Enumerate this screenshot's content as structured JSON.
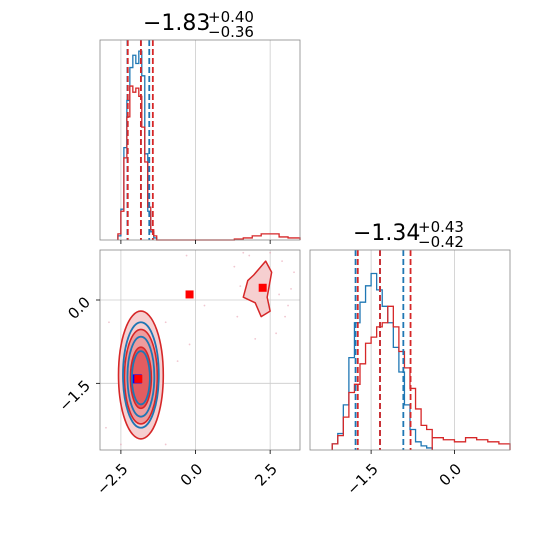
{
  "colors": {
    "blue": "#1f77b4",
    "red": "#d62728",
    "red_fill": "#f4c6c7",
    "grid": "#cccccc",
    "axis": "#888888",
    "blue_marker": "#0000ff",
    "red_marker": "#ff0000"
  },
  "chart_data": [
    {
      "type": "histogram",
      "panel": "x-marginal",
      "title": {
        "value": "−1.83",
        "plus": "+0.40",
        "minus": "−0.36"
      },
      "xlim": [
        -3.2,
        3.5
      ],
      "grid_x": [
        -2.5,
        0.0,
        2.5
      ],
      "bins_x": [
        -2.6,
        -2.5,
        -2.4,
        -2.3,
        -2.2,
        -2.1,
        -2.0,
        -1.9,
        -1.8,
        -1.7,
        -1.6,
        -1.5,
        -1.4,
        -1.3
      ],
      "series": [
        {
          "color": "blue",
          "heights": [
            0.02,
            0.15,
            0.45,
            0.68,
            0.84,
            0.9,
            0.86,
            0.92,
            0.8,
            0.42,
            0.14,
            0.04,
            0.01
          ],
          "quantile_lines": [
            -2.28,
            -1.83,
            -1.55
          ]
        },
        {
          "color": "red",
          "heights": [
            0.03,
            0.14,
            0.4,
            0.6,
            0.75,
            0.72,
            0.74,
            0.7,
            0.55,
            0.38,
            0.16,
            0.05,
            0.02
          ],
          "extra_bins": [
            1.3,
            1.6,
            1.9,
            2.2,
            2.5,
            2.8,
            3.1,
            3.5
          ],
          "extra_heights": [
            0.005,
            0.01,
            0.02,
            0.03,
            0.03,
            0.015,
            0.01
          ],
          "quantile_lines": [
            -2.27,
            -1.83,
            -1.43
          ]
        }
      ]
    },
    {
      "type": "histogram",
      "panel": "y-marginal",
      "title": {
        "value": "−1.34",
        "plus": "+0.43",
        "minus": "−0.42"
      },
      "xlim": [
        -2.6,
        1.0
      ],
      "xticks": [
        -1.5,
        0.0
      ],
      "xtick_labels": [
        "−1.5",
        "0.0"
      ],
      "grid_x": [
        -1.5,
        0.0
      ],
      "bins_x": [
        -2.2,
        -2.1,
        -2.0,
        -1.9,
        -1.8,
        -1.7,
        -1.6,
        -1.5,
        -1.4,
        -1.3,
        -1.2,
        -1.1,
        -1.0,
        -0.9,
        -0.8,
        -0.7,
        -0.6,
        -0.5,
        -0.4
      ],
      "series": [
        {
          "color": "blue",
          "heights": [
            0.03,
            0.08,
            0.22,
            0.45,
            0.62,
            0.72,
            0.8,
            0.86,
            0.78,
            0.7,
            0.62,
            0.5,
            0.38,
            0.22,
            0.1,
            0.04,
            0.02,
            0.01
          ],
          "quantile_lines": [
            -1.78,
            -1.34,
            -0.92
          ]
        },
        {
          "color": "red",
          "heights": [
            0.03,
            0.07,
            0.16,
            0.28,
            0.32,
            0.42,
            0.52,
            0.55,
            0.6,
            0.62,
            0.7,
            0.6,
            0.48,
            0.4,
            0.3,
            0.2,
            0.12,
            0.1
          ],
          "extra_bins": [
            -0.4,
            -0.2,
            0.0,
            0.2,
            0.4,
            0.6,
            0.8,
            1.0
          ],
          "extra_heights": [
            0.06,
            0.05,
            0.04,
            0.06,
            0.05,
            0.04,
            0.03
          ],
          "quantile_lines": [
            -1.74,
            -1.34,
            -0.79
          ]
        }
      ]
    },
    {
      "type": "contour",
      "panel": "joint",
      "xlim": [
        -3.2,
        3.5
      ],
      "ylim": [
        -2.7,
        0.9
      ],
      "xticks": [
        -2.5,
        0.0,
        2.5
      ],
      "xtick_labels": [
        "−2.5",
        "0.0",
        "2.5"
      ],
      "yticks": [
        0.0,
        -1.5
      ],
      "ytick_labels": [
        "0.0",
        "−1.5"
      ],
      "grid_x": [
        -2.5,
        0.0,
        2.5
      ],
      "grid_y": [
        0.0,
        -1.5
      ],
      "blue_contours": [
        {
          "cx": -1.83,
          "cy": -1.35,
          "rx": 0.6,
          "ry": 0.95
        },
        {
          "cx": -1.83,
          "cy": -1.38,
          "rx": 0.45,
          "ry": 0.72
        },
        {
          "cx": -1.83,
          "cy": -1.4,
          "rx": 0.3,
          "ry": 0.48
        }
      ],
      "red_contours": [
        {
          "cx": -1.83,
          "cy": -1.35,
          "rx": 0.75,
          "ry": 1.15
        },
        {
          "cx": -1.83,
          "cy": -1.38,
          "rx": 0.55,
          "ry": 0.85
        },
        {
          "cx": -1.83,
          "cy": -1.4,
          "rx": 0.35,
          "ry": 0.55
        }
      ],
      "red_secondary_mode": {
        "points": [
          [
            1.95,
            0.45
          ],
          [
            2.35,
            0.7
          ],
          [
            2.55,
            0.5
          ],
          [
            2.4,
            0.05
          ],
          [
            2.5,
            -0.2
          ],
          [
            2.2,
            -0.3
          ],
          [
            2.0,
            -0.05
          ],
          [
            1.6,
            0.05
          ],
          [
            1.75,
            0.35
          ]
        ]
      },
      "markers": [
        {
          "color": "blue_marker",
          "x": -1.95,
          "y": -1.42
        },
        {
          "color": "red_marker",
          "x": -1.95,
          "y": -1.42
        },
        {
          "color": "red_marker",
          "x": -0.2,
          "y": 0.1
        },
        {
          "color": "red_marker",
          "x": 2.25,
          "y": 0.22
        }
      ],
      "scatter_points": [
        [
          1.3,
          0.6
        ],
        [
          1.6,
          0.85
        ],
        [
          2.9,
          0.7
        ],
        [
          3.1,
          -0.1
        ],
        [
          1.4,
          -0.3
        ],
        [
          2.7,
          -0.6
        ],
        [
          3.2,
          0.2
        ],
        [
          2.0,
          -0.7
        ],
        [
          1.8,
          0.8
        ],
        [
          3.3,
          0.5
        ],
        [
          2.5,
          0.85
        ],
        [
          1.5,
          0.25
        ],
        [
          -0.3,
          0.8
        ],
        [
          -0.2,
          -0.8
        ],
        [
          -2.9,
          -0.4
        ],
        [
          -3.0,
          -2.3
        ],
        [
          -1.0,
          -2.6
        ],
        [
          -2.5,
          -2.6
        ],
        [
          0.3,
          -0.1
        ],
        [
          -0.6,
          -1.1
        ],
        [
          -1.0,
          -0.4
        ],
        [
          3.0,
          -0.3
        ],
        [
          2.2,
          0.6
        ],
        [
          2.8,
          0.1
        ]
      ]
    }
  ]
}
